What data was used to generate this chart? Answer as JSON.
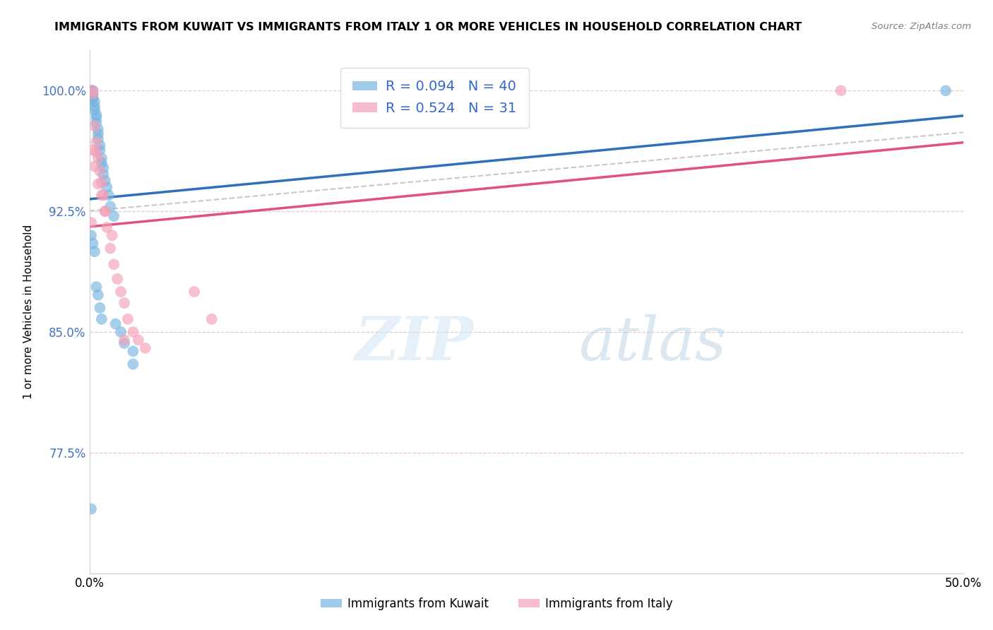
{
  "title": "IMMIGRANTS FROM KUWAIT VS IMMIGRANTS FROM ITALY 1 OR MORE VEHICLES IN HOUSEHOLD CORRELATION CHART",
  "source": "Source: ZipAtlas.com",
  "ylabel": "1 or more Vehicles in Household",
  "xlim": [
    0.0,
    0.5
  ],
  "ylim": [
    0.7,
    1.025
  ],
  "ytick_values": [
    0.775,
    0.85,
    0.925,
    1.0
  ],
  "ytick_labels": [
    "77.5%",
    "85.0%",
    "92.5%",
    "100.0%"
  ],
  "xtick_values": [
    0.0,
    0.1,
    0.2,
    0.3,
    0.4,
    0.5
  ],
  "xtick_labels_show": [
    "0.0%",
    "",
    "",
    "",
    "",
    "50.0%"
  ],
  "watermark_zip": "ZIP",
  "watermark_atlas": "atlas",
  "legend_r_kuwait": "R = 0.094",
  "legend_n_kuwait": "N = 40",
  "legend_r_italy": "R = 0.524",
  "legend_n_italy": "N = 31",
  "kuwait_color": "#78b4e0",
  "italy_color": "#f4a0b8",
  "kuwait_line_color": "#3070b8",
  "italy_line_color": "#e05080",
  "grid_color": "#e8c8cc",
  "axis_color": "#cccccc",
  "ytick_color": "#4472c4",
  "title_fontsize": 11.5,
  "source_fontsize": 9.5,
  "kuwait_scatter_x": [
    0.001,
    0.001,
    0.002,
    0.002,
    0.002,
    0.002,
    0.003,
    0.003,
    0.003,
    0.004,
    0.004,
    0.004,
    0.005,
    0.005,
    0.005,
    0.006,
    0.006,
    0.007,
    0.007,
    0.008,
    0.008,
    0.009,
    0.01,
    0.011,
    0.012,
    0.014,
    0.001,
    0.002,
    0.003,
    0.004,
    0.005,
    0.006,
    0.007,
    0.015,
    0.018,
    0.02,
    0.025,
    0.025,
    0.001,
    0.49
  ],
  "kuwait_scatter_y": [
    1.0,
    0.999,
    1.0,
    0.998,
    0.996,
    0.995,
    0.993,
    0.99,
    0.988,
    0.985,
    0.983,
    0.98,
    0.976,
    0.973,
    0.97,
    0.966,
    0.963,
    0.958,
    0.955,
    0.952,
    0.948,
    0.944,
    0.94,
    0.935,
    0.928,
    0.922,
    0.91,
    0.905,
    0.9,
    0.878,
    0.873,
    0.865,
    0.858,
    0.855,
    0.85,
    0.843,
    0.838,
    0.83,
    0.74,
    1.0
  ],
  "italy_scatter_x": [
    0.001,
    0.002,
    0.002,
    0.003,
    0.004,
    0.004,
    0.005,
    0.006,
    0.007,
    0.008,
    0.009,
    0.01,
    0.012,
    0.014,
    0.016,
    0.018,
    0.02,
    0.022,
    0.025,
    0.028,
    0.032,
    0.06,
    0.07,
    0.002,
    0.003,
    0.005,
    0.007,
    0.009,
    0.013,
    0.02,
    0.43
  ],
  "italy_scatter_y": [
    0.918,
    1.0,
    0.998,
    0.978,
    0.968,
    0.962,
    0.958,
    0.95,
    0.943,
    0.935,
    0.925,
    0.915,
    0.902,
    0.892,
    0.883,
    0.875,
    0.868,
    0.858,
    0.85,
    0.845,
    0.84,
    0.875,
    0.858,
    0.963,
    0.953,
    0.942,
    0.935,
    0.925,
    0.91,
    0.845,
    1.0
  ]
}
